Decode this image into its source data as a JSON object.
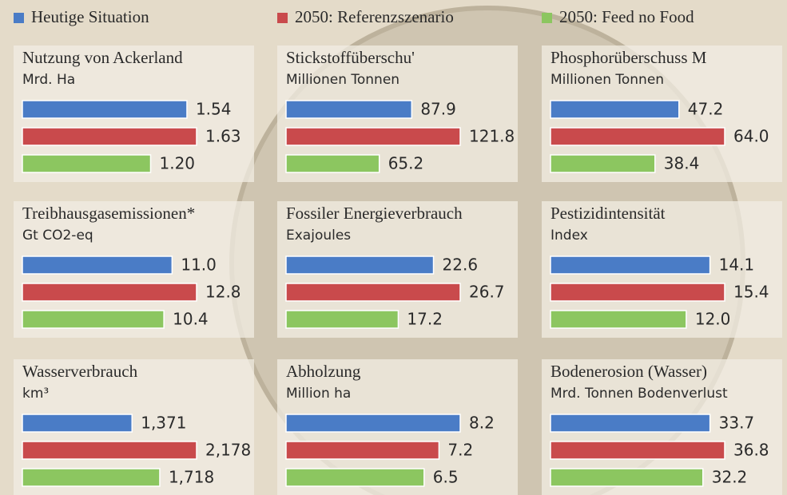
{
  "legend": [
    {
      "name": "Heutige Situation",
      "color": "#4a7cc6"
    },
    {
      "name": "2050: Referenzszenario",
      "color": "#c94a4c"
    },
    {
      "name": "2050: Feed no Food",
      "color": "#8cc660"
    }
  ],
  "chart_data": [
    {
      "type": "bar",
      "title": "Nutzung von Ackerland",
      "subtitle": "Mrd. Ha",
      "values": [
        1.54,
        1.63,
        1.2
      ],
      "value_labels": [
        "1.54",
        "1.63",
        "1.20"
      ]
    },
    {
      "type": "bar",
      "title": "Stickstoffüberschu'",
      "subtitle": "Millionen Tonnen",
      "values": [
        87.9,
        121.8,
        65.2
      ]
    },
    {
      "type": "bar",
      "title": "Phosphorüberschuss M",
      "subtitle": "Millionen Tonnen",
      "values": [
        47.2,
        64.0,
        38.4
      ],
      "value_labels": [
        "47.2",
        "64.0",
        "38.4"
      ]
    },
    {
      "type": "bar",
      "title": "Treibhausgasemissionen*",
      "subtitle": "Gt CO2-eq",
      "values": [
        11.0,
        12.8,
        10.4
      ],
      "value_labels": [
        "11.0",
        "12.8",
        "10.4"
      ]
    },
    {
      "type": "bar",
      "title": "Fossiler Energieverbrauch",
      "subtitle": "Exajoules",
      "values": [
        22.6,
        26.7,
        17.2
      ]
    },
    {
      "type": "bar",
      "title": "Pestizidintensität",
      "subtitle": "Index",
      "values": [
        14.1,
        15.4,
        12.0
      ],
      "value_labels": [
        "14.1",
        "15.4",
        "12.0"
      ]
    },
    {
      "type": "bar",
      "title": "Wasserverbrauch",
      "subtitle": "km³",
      "values": [
        1371,
        2178,
        1718
      ],
      "value_labels": [
        "1,371",
        "2,178",
        "1,718"
      ]
    },
    {
      "type": "bar",
      "title": "Abholzung",
      "subtitle": "Million ha",
      "values": [
        8.2,
        7.2,
        6.5
      ]
    },
    {
      "type": "bar",
      "title": "Bodenerosion (Wasser)",
      "subtitle": "Mrd. Tonnen Bodenverlust",
      "values": [
        33.7,
        36.8,
        32.2
      ]
    }
  ]
}
